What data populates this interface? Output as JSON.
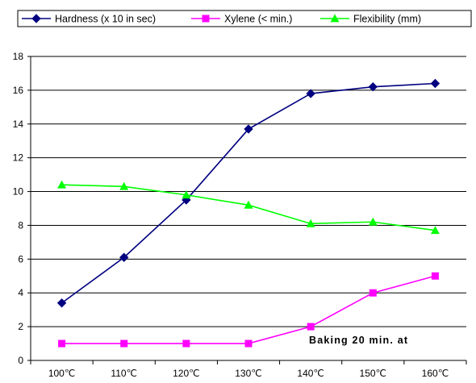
{
  "chart_data": {
    "type": "line",
    "categories": [
      "100℃",
      "110℃",
      "120℃",
      "130℃",
      "140℃",
      "150℃",
      "160℃"
    ],
    "ylim": [
      0,
      18
    ],
    "yticks": [
      0,
      2,
      4,
      6,
      8,
      10,
      12,
      14,
      16,
      18
    ],
    "grid": "horizontal",
    "legend_position": "top",
    "annotation": "Baking 20 min. at",
    "series": [
      {
        "name": "Hardness (x 10 in sec)",
        "values": [
          3.4,
          6.1,
          9.5,
          13.7,
          15.8,
          16.2,
          16.4
        ],
        "color": "#000080",
        "marker": "diamond"
      },
      {
        "name": "Xylene (< min.)",
        "values": [
          1.0,
          1.0,
          1.0,
          1.0,
          2.0,
          4.0,
          5.0
        ],
        "color": "#FF00FF",
        "marker": "square"
      },
      {
        "name": "Flexibility  (mm)",
        "values": [
          10.4,
          10.3,
          9.8,
          9.2,
          8.1,
          8.2,
          7.7
        ],
        "color": "#00FF00",
        "marker": "triangle"
      }
    ]
  }
}
